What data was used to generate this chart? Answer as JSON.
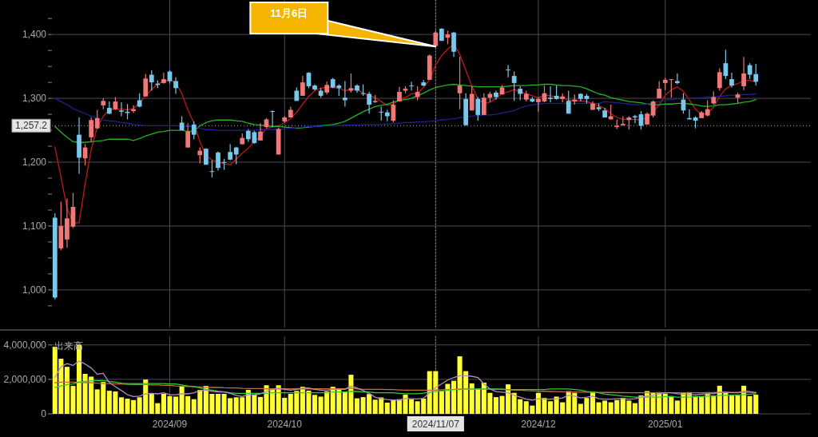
{
  "chart_data": [
    {
      "type": "candlestick",
      "tick_labels": "y",
      "grid": true,
      "ylim": [
        941,
        1454
      ],
      "yticks": [
        {
          "value": 975,
          "label": null
        },
        {
          "value": 1000,
          "label": "1,000"
        },
        {
          "value": 1025,
          "label": null
        },
        {
          "value": 1050,
          "label": null
        },
        {
          "value": 1075,
          "label": null
        },
        {
          "value": 1100,
          "label": "1,100"
        },
        {
          "value": 1125,
          "label": null
        },
        {
          "value": 1150,
          "label": null
        },
        {
          "value": 1175,
          "label": null
        },
        {
          "value": 1200,
          "label": "1,200"
        },
        {
          "value": 1225,
          "label": null
        },
        {
          "value": 1250,
          "label": null
        },
        {
          "value": 1275,
          "label": null
        },
        {
          "value": 1300,
          "label": "1,300"
        },
        {
          "value": 1325,
          "label": null
        },
        {
          "value": 1350,
          "label": null
        },
        {
          "value": 1375,
          "label": null
        },
        {
          "value": 1400,
          "label": "1,400"
        },
        {
          "value": 1425,
          "label": null
        }
      ],
      "categories": [
        null,
        null,
        null,
        null,
        null,
        null,
        null,
        null,
        null,
        null,
        null,
        null,
        null,
        null,
        null,
        null,
        null,
        null,
        null,
        "2024/09",
        null,
        null,
        null,
        null,
        null,
        null,
        null,
        null,
        null,
        null,
        null,
        null,
        null,
        null,
        null,
        null,
        null,
        null,
        "2024/10",
        null,
        null,
        null,
        null,
        null,
        null,
        null,
        null,
        null,
        null,
        null,
        null,
        null,
        null,
        null,
        null,
        null,
        null,
        null,
        null,
        null,
        null,
        null,
        null,
        "2024/11/07",
        null,
        null,
        null,
        null,
        null,
        null,
        null,
        null,
        null,
        null,
        null,
        null,
        null,
        null,
        null,
        null,
        "2024/12",
        null,
        null,
        null,
        null,
        null,
        null,
        null,
        null,
        null,
        null,
        null,
        null,
        null,
        null,
        null,
        null,
        null,
        null,
        null,
        null,
        "2025/01",
        null,
        null,
        null,
        null,
        null,
        null,
        null,
        null,
        null,
        null,
        null,
        null,
        null,
        null,
        null
      ],
      "ohlc": [
        [
          1113,
          1120,
          985,
          988
        ],
        [
          1065,
          1138,
          1062,
          1100
        ],
        [
          1079,
          1143,
          1066,
          1112
        ],
        [
          1099,
          1152,
          1097,
          1130
        ],
        [
          1243,
          1270,
          1182,
          1207
        ],
        [
          1206,
          1228,
          1195,
          1223
        ],
        [
          1239,
          1270,
          1232,
          1266
        ],
        [
          1253,
          1282,
          1252,
          1269
        ],
        [
          1289,
          1300,
          1283,
          1296
        ],
        [
          1285,
          1295,
          1275,
          1276
        ],
        [
          1283,
          1302,
          1282,
          1295
        ],
        [
          1281,
          1294,
          1272,
          1279
        ],
        [
          1279,
          1291,
          1267,
          1277
        ],
        [
          1280,
          1289,
          1277,
          1283
        ],
        [
          1297,
          1308,
          1286,
          1287
        ],
        [
          1303,
          1338,
          1303,
          1331
        ],
        [
          1337,
          1344,
          1312,
          1325
        ],
        [
          1323,
          1328,
          1316,
          1321
        ],
        [
          1324,
          1340,
          1323,
          1330
        ],
        [
          1342,
          1344,
          1323,
          1327
        ],
        [
          1327,
          1333,
          1307,
          1316
        ],
        [
          1262,
          1272,
          1250,
          1250
        ],
        [
          1223,
          1261,
          1223,
          1248
        ],
        [
          1259,
          1264,
          1236,
          1243
        ],
        [
          1211,
          1223,
          1198,
          1218
        ],
        [
          1221,
          1222,
          1196,
          1196
        ],
        [
          1186,
          1203,
          1176,
          1185
        ],
        [
          1215,
          1217,
          1187,
          1191
        ],
        [
          1200,
          1205,
          1188,
          1199
        ],
        [
          1216,
          1228,
          1203,
          1204
        ],
        [
          1223,
          1224,
          1197,
          1212
        ],
        [
          1228,
          1245,
          1228,
          1238
        ],
        [
          1249,
          1252,
          1232,
          1236
        ],
        [
          1247,
          1249,
          1229,
          1230
        ],
        [
          1234,
          1261,
          1234,
          1248
        ],
        [
          1255,
          1269,
          1253,
          1267
        ],
        [
          1280,
          1281,
          1255,
          1279
        ],
        [
          1212,
          1254,
          1212,
          1252
        ],
        [
          1264,
          1272,
          1262,
          1270
        ],
        [
          1270,
          1287,
          1270,
          1282
        ],
        [
          1312,
          1317,
          1296,
          1296
        ],
        [
          1304,
          1335,
          1304,
          1325
        ],
        [
          1340,
          1341,
          1316,
          1319
        ],
        [
          1320,
          1322,
          1312,
          1314
        ],
        [
          1312,
          1316,
          1301,
          1304
        ],
        [
          1309,
          1326,
          1306,
          1321
        ],
        [
          1330,
          1332,
          1316,
          1317
        ],
        [
          1320,
          1322,
          1304,
          1316
        ],
        [
          1301,
          1327,
          1287,
          1297
        ],
        [
          1312,
          1339,
          1309,
          1316
        ],
        [
          1320,
          1322,
          1309,
          1312
        ],
        [
          1308,
          1322,
          1304,
          1307
        ],
        [
          1307,
          1310,
          1276,
          1290
        ],
        [
          1294,
          1305,
          1293,
          1296
        ],
        [
          1279,
          1287,
          1265,
          1278
        ],
        [
          1278,
          1282,
          1264,
          1272
        ],
        [
          1265,
          1297,
          1262,
          1290
        ],
        [
          1295,
          1318,
          1295,
          1310
        ],
        [
          1312,
          1319,
          1308,
          1315
        ],
        [
          1320,
          1326,
          1312,
          1319
        ],
        [
          1302,
          1319,
          1297,
          1310
        ],
        [
          1325,
          1329,
          1319,
          1320
        ],
        [
          1329,
          1369,
          1329,
          1367
        ],
        [
          1382,
          1406,
          1381,
          1403
        ],
        [
          1409,
          1410,
          1390,
          1390
        ],
        [
          1395,
          1406,
          1385,
          1400
        ],
        [
          1403,
          1404,
          1365,
          1373
        ],
        [
          1308,
          1365,
          1283,
          1320
        ],
        [
          1299,
          1308,
          1257,
          1258
        ],
        [
          1281,
          1319,
          1281,
          1307
        ],
        [
          1299,
          1302,
          1265,
          1274
        ],
        [
          1274,
          1308,
          1274,
          1301
        ],
        [
          1301,
          1310,
          1294,
          1307
        ],
        [
          1309,
          1312,
          1298,
          1302
        ],
        [
          1306,
          1321,
          1306,
          1317
        ],
        [
          1345,
          1352,
          1333,
          1344
        ],
        [
          1335,
          1342,
          1296,
          1324
        ],
        [
          1315,
          1319,
          1297,
          1307
        ],
        [
          1298,
          1312,
          1295,
          1307
        ],
        [
          1299,
          1302,
          1294,
          1295
        ],
        [
          1294,
          1302,
          1279,
          1299
        ],
        [
          1295,
          1320,
          1294,
          1308
        ],
        [
          1301,
          1319,
          1294,
          1299
        ],
        [
          1304,
          1320,
          1298,
          1299
        ],
        [
          1299,
          1308,
          1294,
          1303
        ],
        [
          1296,
          1312,
          1276,
          1276
        ],
        [
          1295,
          1306,
          1290,
          1298
        ],
        [
          1307,
          1308,
          1295,
          1299
        ],
        [
          1304,
          1307,
          1292,
          1299
        ],
        [
          1282,
          1295,
          1282,
          1292
        ],
        [
          1286,
          1292,
          1280,
          1283
        ],
        [
          1281,
          1285,
          1270,
          1270
        ],
        [
          1267,
          1290,
          1267,
          1272
        ],
        [
          1255,
          1267,
          1252,
          1257
        ],
        [
          1258,
          1272,
          1257,
          1260
        ],
        [
          1266,
          1272,
          1251,
          1270
        ],
        [
          1272,
          1274,
          1261,
          1270
        ],
        [
          1275,
          1280,
          1251,
          1257
        ],
        [
          1259,
          1278,
          1259,
          1276
        ],
        [
          1273,
          1297,
          1270,
          1295
        ],
        [
          1300,
          1327,
          1300,
          1315
        ],
        [
          1324,
          1332,
          1313,
          1329
        ],
        [
          1329,
          1330,
          1301,
          1330
        ],
        [
          1327,
          1339,
          1322,
          1324
        ],
        [
          1298,
          1308,
          1276,
          1281
        ],
        [
          1269,
          1283,
          1267,
          1267
        ],
        [
          1270,
          1272,
          1253,
          1265
        ],
        [
          1269,
          1280,
          1269,
          1278
        ],
        [
          1273,
          1297,
          1272,
          1283
        ],
        [
          1292,
          1311,
          1290,
          1302
        ],
        [
          1316,
          1347,
          1312,
          1341
        ],
        [
          1355,
          1376,
          1330,
          1335
        ],
        [
          1330,
          1340,
          1317,
          1320
        ],
        [
          1301,
          1309,
          1292,
          1306
        ],
        [
          1319,
          1365,
          1313,
          1339
        ],
        [
          1352,
          1355,
          1330,
          1337
        ],
        [
          1338,
          1354,
          1320,
          1326
        ]
      ],
      "colors": [
        "#78c8ec",
        "#f07878",
        "#f07878",
        "#f07878",
        "#78c8ec",
        "#f07878",
        "#f07878",
        "#f07878",
        "#f07878",
        "#78c8ec",
        "#f07878",
        "#78c8ec",
        "#78c8ec",
        "#f07878",
        "#78c8ec",
        "#f07878",
        "#78c8ec",
        "#78c8ec",
        "#f07878",
        "#78c8ec",
        "#78c8ec",
        "#78c8ec",
        "#f07878",
        "#78c8ec",
        "#f07878",
        "#78c8ec",
        "#78c8ec",
        "#78c8ec",
        "#78c8ec",
        "#78c8ec",
        "#78c8ec",
        "#f07878",
        "#78c8ec",
        "#78c8ec",
        "#f07878",
        "#f07878",
        "#78c8ec",
        "#f07878",
        "#f07878",
        "#f07878",
        "#78c8ec",
        "#f07878",
        "#78c8ec",
        "#78c8ec",
        "#78c8ec",
        "#f07878",
        "#78c8ec",
        "#78c8ec",
        "#78c8ec",
        "#f07878",
        "#78c8ec",
        "#78c8ec",
        "#78c8ec",
        "#f07878",
        "#78c8ec",
        "#78c8ec",
        "#f07878",
        "#f07878",
        "#f07878",
        "#78c8ec",
        "#f07878",
        "#78c8ec",
        "#f07878",
        "#f07878",
        "#78c8ec",
        "#f07878",
        "#78c8ec",
        "#f07878",
        "#78c8ec",
        "#f07878",
        "#78c8ec",
        "#f07878",
        "#f07878",
        "#78c8ec",
        "#f07878",
        "#78c8ec",
        "#78c8ec",
        "#78c8ec",
        "#f07878",
        "#78c8ec",
        "#f07878",
        "#f07878",
        "#78c8ec",
        "#78c8ec",
        "#f07878",
        "#78c8ec",
        "#f07878",
        "#78c8ec",
        "#78c8ec",
        "#f07878",
        "#78c8ec",
        "#78c8ec",
        "#f07878",
        "#f07878",
        "#f07878",
        "#f07878",
        "#78c8ec",
        "#78c8ec",
        "#f07878",
        "#f07878",
        "#f07878",
        "#f07878",
        "#f07878",
        "#78c8ec",
        "#78c8ec",
        "#78c8ec",
        "#78c8ec",
        "#f07878",
        "#f07878",
        "#f07878",
        "#f07878",
        "#78c8ec",
        "#78c8ec",
        "#f07878",
        "#f07878",
        "#78c8ec",
        "#78c8ec"
      ],
      "series": [
        {
          "type": "line",
          "color": "#c01818",
          "values": [
            1224,
            1176,
            1128,
            1105,
            1105,
            1166,
            1220,
            1255,
            1272,
            1282,
            1283,
            1283,
            1282,
            1284,
            1293,
            1304,
            1314,
            1322,
            1327,
            1328,
            1325,
            1307,
            1282,
            1261,
            1232,
            1211,
            1203,
            1201,
            1197,
            1196,
            1205,
            1214,
            1222,
            1232,
            1241,
            1253,
            1255,
            1257,
            1262,
            1268,
            1278,
            1291,
            1303,
            1312,
            1316,
            1317,
            1317,
            1316,
            1312,
            1314,
            1314,
            1308,
            1305,
            1301,
            1295,
            1289,
            1291,
            1298,
            1301,
            1307,
            1308,
            1317,
            1329,
            1352,
            1367,
            1377,
            1385,
            1369,
            1344,
            1319,
            1299,
            1292,
            1294,
            1300,
            1308,
            1310,
            1314,
            1310,
            1307,
            1304,
            1301,
            1305,
            1304,
            1302,
            1301,
            1297,
            1297,
            1296,
            1295,
            1292,
            1288,
            1284,
            1276,
            1270,
            1267,
            1267,
            1267,
            1266,
            1270,
            1278,
            1290,
            1305,
            1313,
            1318,
            1311,
            1297,
            1283,
            1275,
            1276,
            1286,
            1303,
            1315,
            1320,
            1323,
            1328,
            1328,
            1326
          ]
        },
        {
          "type": "line",
          "color": "#22b322",
          "values": [
            1256,
            1247,
            1239,
            1232,
            1231,
            1231,
            1232,
            1233,
            1234,
            1236,
            1236,
            1236,
            1236,
            1234,
            1237,
            1241,
            1244,
            1247,
            1248,
            1250,
            1250,
            1250,
            1248,
            1249,
            1257,
            1262,
            1265,
            1266,
            1266,
            1266,
            1265,
            1264,
            1261,
            1259,
            1258,
            1257,
            1256,
            1256,
            1255,
            1254,
            1253,
            1254,
            1255,
            1256,
            1257,
            1258,
            1259,
            1261,
            1264,
            1269,
            1274,
            1279,
            1283,
            1287,
            1289,
            1291,
            1294,
            1297,
            1298,
            1300,
            1304,
            1308,
            1313,
            1317,
            1319,
            1321,
            1322,
            1321,
            1320,
            1319,
            1318,
            1318,
            1318,
            1318,
            1318,
            1319,
            1320,
            1320,
            1320,
            1321,
            1321,
            1322,
            1322,
            1321,
            1320,
            1320,
            1319,
            1318,
            1315,
            1311,
            1307,
            1305,
            1301,
            1299,
            1297,
            1295,
            1294,
            1293,
            1291,
            1290,
            1290,
            1291,
            1291,
            1292,
            1292,
            1291,
            1290,
            1288,
            1287,
            1288,
            1290,
            1290,
            1291,
            1292,
            1294,
            1295,
            1298
          ]
        },
        {
          "type": "line",
          "color": "#20208c",
          "values": [
            1300,
            1295,
            1290,
            1284,
            1280,
            1276,
            1272,
            1269,
            1266,
            1265,
            1264,
            1262,
            1261,
            1259,
            1258,
            1257,
            1257,
            1257,
            1257,
            1257,
            1257,
            1256,
            1256,
            1256,
            1253,
            1251,
            1251,
            1250,
            1250,
            1250,
            1250,
            1250,
            1250,
            1250,
            1251,
            1251,
            1251,
            1251,
            1252,
            1253,
            1254,
            1255,
            1256,
            1256,
            1256,
            1257,
            1257,
            1257,
            1258,
            1258,
            1258,
            1259,
            1259,
            1259,
            1259,
            1260,
            1260,
            1261,
            1262,
            1262,
            1263,
            1263,
            1264,
            1265,
            1266,
            1267,
            1268,
            1270,
            1271,
            1272,
            1273,
            1274,
            1274,
            1275,
            1277,
            1279,
            1281,
            1285,
            1288,
            1290,
            1291,
            1292,
            1292,
            1292,
            1292,
            1292,
            1292,
            1292,
            1292,
            1292,
            1292,
            1295,
            1294,
            1293,
            1292,
            1291,
            1290,
            1290,
            1291,
            1293,
            1295,
            1297,
            1298,
            1299,
            1300,
            1300,
            1300,
            1301,
            1302,
            1302,
            1303,
            1304,
            1305,
            1305,
            1306,
            1306,
            1307
          ]
        }
      ],
      "ref_lines": [
        {
          "axis": "y",
          "value": 1257.2,
          "label": "1,257.2",
          "line_style": "dotted"
        },
        {
          "axis": "x",
          "value": "2024/11/07",
          "line_style": "dotted"
        }
      ],
      "annotations": [
        "11月6日"
      ]
    },
    {
      "type": "bar",
      "title": "出来高",
      "grid": true,
      "ylim": [
        0,
        4500000
      ],
      "yticks": [
        0,
        {
          "value": 2000000,
          "label": "2,000,000"
        },
        {
          "value": 4000000,
          "label": "4,000,000"
        }
      ],
      "categories": [
        null,
        null,
        null,
        null,
        null,
        null,
        null,
        null,
        null,
        null,
        null,
        null,
        null,
        null,
        null,
        null,
        null,
        null,
        null,
        "2024/09",
        null,
        null,
        null,
        null,
        null,
        null,
        null,
        null,
        null,
        null,
        null,
        null,
        null,
        null,
        null,
        null,
        null,
        null,
        "2024/10",
        null,
        null,
        null,
        null,
        null,
        null,
        null,
        null,
        null,
        null,
        null,
        null,
        null,
        null,
        null,
        null,
        null,
        null,
        null,
        null,
        null,
        null,
        null,
        null,
        "2024/11/07",
        null,
        null,
        null,
        null,
        null,
        null,
        null,
        null,
        null,
        null,
        null,
        null,
        null,
        null,
        null,
        null,
        "2024/12",
        null,
        null,
        null,
        null,
        null,
        null,
        null,
        null,
        null,
        null,
        null,
        null,
        null,
        null,
        null,
        null,
        null,
        null,
        null,
        null,
        "2025/01",
        null,
        null,
        null,
        null,
        null,
        null,
        null,
        null,
        null,
        null,
        null,
        null,
        null,
        null,
        null
      ],
      "series": [
        {
          "type": "bar",
          "color": "#ffff33",
          "values": [
            3890000,
            3200000,
            2730000,
            1620000,
            4000000,
            2320000,
            2160000,
            1420000,
            1850000,
            1340000,
            1300000,
            960000,
            880000,
            800000,
            960000,
            1990000,
            1160000,
            620000,
            1160000,
            1030000,
            1000000,
            1620000,
            1030000,
            850000,
            1390000,
            1620000,
            1160000,
            1160000,
            1160000,
            910000,
            960000,
            960000,
            1390000,
            1110000,
            980000,
            1660000,
            1420000,
            1660000,
            930000,
            1160000,
            1330000,
            1570000,
            1350000,
            1100000,
            1000000,
            1300000,
            1570000,
            1450000,
            1250000,
            2270000,
            900000,
            970000,
            1150000,
            820000,
            950000,
            650000,
            800000,
            850000,
            1110000,
            850000,
            730000,
            880000,
            2480000,
            2480000,
            1340000,
            1740000,
            1920000,
            3340000,
            2480000,
            1770000,
            1440000,
            1810000,
            1220000,
            970000,
            1040000,
            1710000,
            1220000,
            850000,
            730000,
            480000,
            1220000,
            920000,
            730000,
            1000000,
            670000,
            1320000,
            1220000,
            580000,
            920000,
            1290000,
            670000,
            770000,
            670000,
            800000,
            920000,
            770000,
            620000,
            1070000,
            1320000,
            1220000,
            1260000,
            1170000,
            1030000,
            770000,
            1220000,
            1260000,
            1030000,
            1030000,
            1170000,
            1070000,
            1630000,
            1220000,
            1110000,
            1070000,
            1630000,
            1030000,
            1110000
          ]
        },
        {
          "type": "line",
          "color": "#c07038",
          "values": [
            1810000,
            1840000,
            1840000,
            1840000,
            1840000,
            1810000,
            1810000,
            1780000,
            1760000,
            1760000,
            1730000,
            1730000,
            1710000,
            1700000,
            1700000,
            1700000,
            1680000,
            1680000,
            1650000,
            1650000,
            1620000,
            1610000,
            1590000,
            1580000,
            1560000,
            1540000,
            1530000,
            1530000,
            1510000,
            1500000,
            1500000,
            1480000,
            1470000,
            1470000,
            1470000,
            1450000,
            1450000,
            1450000,
            1450000,
            1450000,
            1450000,
            1450000,
            1450000,
            1450000,
            1450000,
            1450000,
            1450000,
            1450000,
            1450000,
            1500000,
            1450000,
            1420000,
            1420000,
            1420000,
            1420000,
            1410000,
            1410000,
            1390000,
            1370000,
            1370000,
            1370000,
            1370000,
            1370000,
            1380000,
            1400000,
            1410000,
            1420000,
            1440000,
            1440000,
            1440000,
            1440000,
            1440000,
            1440000,
            1420000,
            1410000,
            1400000,
            1380000,
            1370000,
            1350000,
            1340000,
            1320000,
            1310000,
            1300000,
            1290000,
            1280000,
            1270000,
            1270000,
            1260000,
            1260000,
            1250000,
            1250000,
            1240000,
            1240000,
            1230000,
            1230000,
            1220000,
            1220000,
            1220000,
            1220000,
            1220000,
            1220000,
            1220000,
            1220000,
            1220000,
            1220000,
            1220000,
            1220000,
            1220000,
            1230000,
            1230000,
            1240000,
            1240000,
            1240000,
            1250000,
            1250000,
            1250000,
            1250000
          ]
        },
        {
          "type": "line",
          "color": "#33cc33",
          "values": [
            1530000,
            1620000,
            1700000,
            1730000,
            1840000,
            1880000,
            1920000,
            1930000,
            1930000,
            1880000,
            1840000,
            1780000,
            1760000,
            1760000,
            1760000,
            1760000,
            1760000,
            1760000,
            1760000,
            1730000,
            1730000,
            1680000,
            1620000,
            1580000,
            1500000,
            1420000,
            1370000,
            1310000,
            1270000,
            1220000,
            1190000,
            1190000,
            1190000,
            1190000,
            1190000,
            1190000,
            1220000,
            1220000,
            1220000,
            1220000,
            1220000,
            1220000,
            1220000,
            1220000,
            1220000,
            1220000,
            1270000,
            1270000,
            1270000,
            1300000,
            1300000,
            1270000,
            1270000,
            1220000,
            1220000,
            1220000,
            1220000,
            1190000,
            1170000,
            1170000,
            1170000,
            1200000,
            1260000,
            1290000,
            1320000,
            1370000,
            1410000,
            1410000,
            1440000,
            1440000,
            1440000,
            1440000,
            1440000,
            1440000,
            1440000,
            1410000,
            1410000,
            1410000,
            1410000,
            1410000,
            1410000,
            1410000,
            1440000,
            1440000,
            1440000,
            1440000,
            1410000,
            1370000,
            1290000,
            1260000,
            1220000,
            1140000,
            1110000,
            1070000,
            1030000,
            1000000,
            970000,
            970000,
            970000,
            970000,
            970000,
            1000000,
            1000000,
            970000,
            970000,
            970000,
            1000000,
            1000000,
            1030000,
            1030000,
            1070000,
            1070000,
            1070000,
            1110000,
            1110000,
            1140000,
            1170000
          ]
        },
        {
          "type": "line",
          "color": "#b48cc8",
          "values": [
            2120000,
            2730000,
            2920000,
            2810000,
            3070000,
            2890000,
            2660000,
            2300000,
            2350000,
            1810000,
            1580000,
            1350000,
            1110000,
            1000000,
            1030000,
            1160000,
            1190000,
            1160000,
            1220000,
            1110000,
            1110000,
            1160000,
            1160000,
            1220000,
            1350000,
            1370000,
            1310000,
            1270000,
            1270000,
            1190000,
            1070000,
            1000000,
            1110000,
            1110000,
            1160000,
            1310000,
            1420000,
            1500000,
            1420000,
            1370000,
            1420000,
            1500000,
            1500000,
            1420000,
            1370000,
            1350000,
            1420000,
            1420000,
            1420000,
            1620000,
            1500000,
            1350000,
            1190000,
            960000,
            880000,
            830000,
            800000,
            800000,
            890000,
            880000,
            860000,
            900000,
            1220000,
            1520000,
            1740000,
            1960000,
            2110000,
            2210000,
            2210000,
            2180000,
            2110000,
            1740000,
            1440000,
            1290000,
            1260000,
            1220000,
            1070000,
            970000,
            850000,
            800000,
            880000,
            850000,
            850000,
            880000,
            920000,
            1070000,
            1030000,
            920000,
            970000,
            1030000,
            880000,
            850000,
            850000,
            880000,
            880000,
            850000,
            880000,
            970000,
            1030000,
            1070000,
            1170000,
            1220000,
            1220000,
            1170000,
            1140000,
            1110000,
            1110000,
            1140000,
            1170000,
            1170000,
            1260000,
            1260000,
            1220000,
            1220000,
            1320000,
            1290000,
            1220000
          ]
        }
      ],
      "ref_lines": [
        {
          "axis": "x",
          "value": "2024/11/07",
          "line_style": "dotted"
        }
      ]
    }
  ]
}
